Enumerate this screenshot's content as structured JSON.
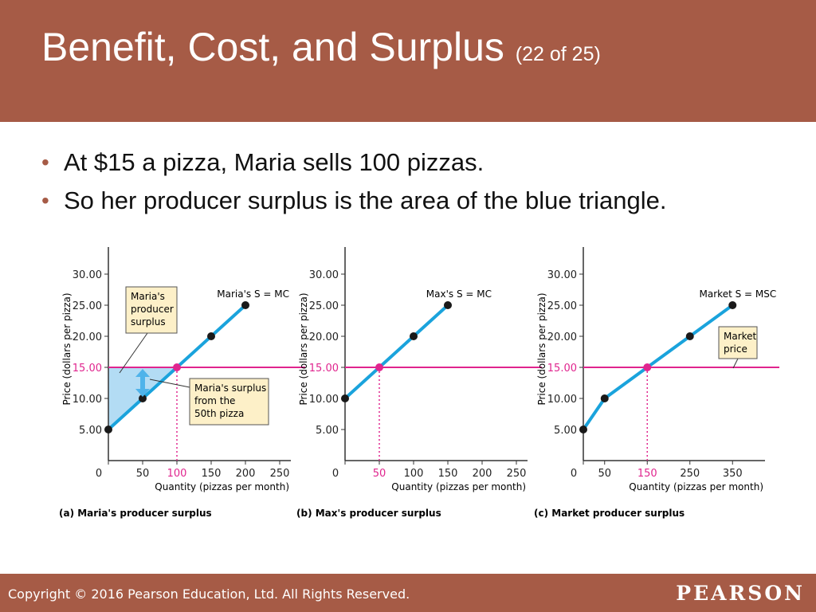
{
  "slide": {
    "title": "Benefit, Cost, and Surplus",
    "title_sub": "(22 of 25)",
    "bullets": [
      "At $15 a pizza, Maria sells 100 pizzas.",
      "So her producer surplus is the area of the blue triangle."
    ],
    "copyright": "Copyright © 2016 Pearson Education, Ltd. All Rights Reserved.",
    "logo": "PEARSON"
  },
  "colors": {
    "header": "#a65b46",
    "supply_line": "#1aa3dc",
    "price_line": "#e0258e",
    "surplus_fill": "#b3dcf4",
    "surplus_arrow": "#4fb3ea",
    "callout_bg": "#fdf0c8",
    "axis": "#333333"
  },
  "chart_data": [
    {
      "type": "line",
      "caption": "(a) Maria's producer surplus",
      "ylabel": "Price (dollars per pizza)",
      "xlabel": "Quantity (pizzas per month)",
      "xlim": [
        0,
        250
      ],
      "ylim": [
        0,
        30
      ],
      "xticks": [
        0,
        50,
        100,
        150,
        200,
        250
      ],
      "yticks": [
        5,
        10,
        15,
        20,
        25,
        30
      ],
      "ytick_labels": [
        "5.00",
        "10.00",
        "15.00",
        "20.00",
        "25.00",
        "30.00"
      ],
      "series": [
        {
          "name": "Maria's S = MC",
          "x": [
            0,
            50,
            100,
            150,
            200
          ],
          "y": [
            5,
            10,
            15,
            20,
            25
          ]
        }
      ],
      "price": 15,
      "quantity_marker": 100,
      "surplus_area": true,
      "surplus_arrow_at_q": 50,
      "callouts": [
        {
          "id": "surplus-label",
          "lines": [
            "Maria's",
            "producer",
            "surplus"
          ]
        },
        {
          "id": "fiftieth-pizza-label",
          "lines": [
            "Maria's surplus",
            "from the",
            "50th pizza"
          ]
        }
      ]
    },
    {
      "type": "line",
      "caption": "(b) Max's producer surplus",
      "ylabel": "Price (dollars per pizza)",
      "xlabel": "Quantity (pizzas per month)",
      "xlim": [
        0,
        250
      ],
      "ylim": [
        0,
        30
      ],
      "xticks": [
        0,
        50,
        100,
        150,
        200,
        250
      ],
      "yticks": [
        5,
        10,
        15,
        20,
        25,
        30
      ],
      "ytick_labels": [
        "5.00",
        "10.00",
        "15.00",
        "20.00",
        "25.00",
        "30.00"
      ],
      "series": [
        {
          "name": "Max's S = MC",
          "x": [
            0,
            50,
            100,
            150
          ],
          "y": [
            10,
            15,
            20,
            25
          ]
        }
      ],
      "price": 15,
      "quantity_marker": 50
    },
    {
      "type": "line",
      "caption": "(c) Market producer surplus",
      "ylabel": "Price (dollars per pizza)",
      "xlabel": "Quantity (pizzas per month)",
      "xlim": [
        0,
        400
      ],
      "ylim": [
        0,
        30
      ],
      "xticks": [
        0,
        50,
        150,
        250,
        350
      ],
      "yticks": [
        5,
        10,
        15,
        20,
        25,
        30
      ],
      "ytick_labels": [
        "5.00",
        "10.00",
        "15.00",
        "20.00",
        "25.00",
        "30.00"
      ],
      "series": [
        {
          "name": "Market S = MSC",
          "x": [
            0,
            50,
            150,
            250,
            350
          ],
          "y": [
            5,
            10,
            15,
            20,
            25
          ]
        }
      ],
      "price": 15,
      "quantity_marker": 150,
      "callouts": [
        {
          "id": "market-price-label",
          "lines": [
            "Market",
            "price"
          ]
        }
      ]
    }
  ]
}
